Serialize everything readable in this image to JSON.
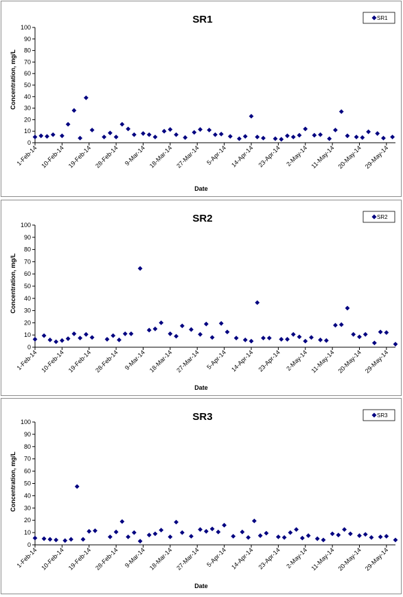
{
  "chart_data": [
    {
      "type": "scatter",
      "title": "SR1",
      "xlabel": "Date",
      "ylabel": "Concentration, mg/L",
      "ylim": [
        0,
        100
      ],
      "yticks": [
        0,
        10,
        20,
        30,
        40,
        50,
        60,
        70,
        80,
        90,
        100
      ],
      "xlim": [
        "2014-02-01",
        "2014-06-01"
      ],
      "xticks": [
        "1-Feb-14",
        "10-Feb-14",
        "19-Feb-14",
        "28-Feb-14",
        "9-Mar-14",
        "18-Mar-14",
        "27-Mar-14",
        "5-Apr-14",
        "14-Apr-14",
        "23-Apr-14",
        "2-May-14",
        "11-May-14",
        "20-May-14",
        "29-May-14"
      ],
      "grid": false,
      "legend": "top-right",
      "marker_color": "#000080",
      "series": [
        {
          "name": "SR1",
          "points": [
            [
              "2014-02-01",
              5
            ],
            [
              "2014-02-03",
              6
            ],
            [
              "2014-02-05",
              5.5
            ],
            [
              "2014-02-07",
              7
            ],
            [
              "2014-02-10",
              6
            ],
            [
              "2014-02-12",
              16
            ],
            [
              "2014-02-14",
              28
            ],
            [
              "2014-02-16",
              4
            ],
            [
              "2014-02-18",
              39
            ],
            [
              "2014-02-20",
              11
            ],
            [
              "2014-02-24",
              5
            ],
            [
              "2014-02-26",
              8.5
            ],
            [
              "2014-02-28",
              5
            ],
            [
              "2014-03-02",
              16
            ],
            [
              "2014-03-04",
              12
            ],
            [
              "2014-03-06",
              7
            ],
            [
              "2014-03-09",
              8
            ],
            [
              "2014-03-11",
              7
            ],
            [
              "2014-03-13",
              5
            ],
            [
              "2014-03-16",
              10
            ],
            [
              "2014-03-18",
              11.5
            ],
            [
              "2014-03-20",
              7
            ],
            [
              "2014-03-23",
              4.5
            ],
            [
              "2014-03-26",
              9
            ],
            [
              "2014-03-28",
              11.5
            ],
            [
              "2014-03-31",
              11
            ],
            [
              "2014-04-02",
              7
            ],
            [
              "2014-04-04",
              7.5
            ],
            [
              "2014-04-07",
              5.5
            ],
            [
              "2014-04-10",
              3.5
            ],
            [
              "2014-04-12",
              5.5
            ],
            [
              "2014-04-14",
              23
            ],
            [
              "2014-04-16",
              5
            ],
            [
              "2014-04-18",
              4
            ],
            [
              "2014-04-22",
              3.5
            ],
            [
              "2014-04-24",
              3
            ],
            [
              "2014-04-26",
              6
            ],
            [
              "2014-04-28",
              5
            ],
            [
              "2014-04-30",
              6.5
            ],
            [
              "2014-05-02",
              12
            ],
            [
              "2014-05-05",
              6.5
            ],
            [
              "2014-05-07",
              7
            ],
            [
              "2014-05-10",
              3.5
            ],
            [
              "2014-05-12",
              11
            ],
            [
              "2014-05-14",
              27
            ],
            [
              "2014-05-16",
              6
            ],
            [
              "2014-05-19",
              5
            ],
            [
              "2014-05-21",
              4.5
            ],
            [
              "2014-05-23",
              9.5
            ],
            [
              "2014-05-26",
              8
            ],
            [
              "2014-05-28",
              4
            ],
            [
              "2014-05-31",
              5
            ]
          ]
        }
      ]
    },
    {
      "type": "scatter",
      "title": "SR2",
      "xlabel": "Date",
      "ylabel": "Concentration, mg/L",
      "ylim": [
        0,
        100
      ],
      "yticks": [
        0,
        10,
        20,
        30,
        40,
        50,
        60,
        70,
        80,
        90,
        100
      ],
      "xlim": [
        "2014-02-01",
        "2014-06-01"
      ],
      "xticks": [
        "1-Feb-14",
        "10-Feb-14",
        "19-Feb-14",
        "28-Feb-14",
        "9-Mar-14",
        "18-Mar-14",
        "27-Mar-14",
        "5-Apr-14",
        "14-Apr-14",
        "23-Apr-14",
        "2-May-14",
        "11-May-14",
        "20-May-14",
        "29-May-14"
      ],
      "grid": false,
      "legend": "top-right",
      "marker_color": "#000080",
      "series": [
        {
          "name": "SR2",
          "points": [
            [
              "2014-02-01",
              6.5
            ],
            [
              "2014-02-04",
              9.5
            ],
            [
              "2014-02-06",
              6
            ],
            [
              "2014-02-08",
              4.5
            ],
            [
              "2014-02-10",
              5.5
            ],
            [
              "2014-02-12",
              7
            ],
            [
              "2014-02-14",
              11
            ],
            [
              "2014-02-16",
              7.5
            ],
            [
              "2014-02-18",
              10.5
            ],
            [
              "2014-02-20",
              8
            ],
            [
              "2014-02-25",
              6.5
            ],
            [
              "2014-02-27",
              9.5
            ],
            [
              "2014-03-01",
              6
            ],
            [
              "2014-03-03",
              11
            ],
            [
              "2014-03-05",
              11
            ],
            [
              "2014-03-08",
              64.5
            ],
            [
              "2014-03-11",
              14
            ],
            [
              "2014-03-13",
              15
            ],
            [
              "2014-03-15",
              20
            ],
            [
              "2014-03-18",
              11
            ],
            [
              "2014-03-20",
              9
            ],
            [
              "2014-03-22",
              17.5
            ],
            [
              "2014-03-25",
              14.5
            ],
            [
              "2014-03-28",
              10.5
            ],
            [
              "2014-03-30",
              19
            ],
            [
              "2014-04-01",
              8
            ],
            [
              "2014-04-04",
              19.5
            ],
            [
              "2014-04-06",
              12.5
            ],
            [
              "2014-04-09",
              7.5
            ],
            [
              "2014-04-12",
              6
            ],
            [
              "2014-04-14",
              5
            ],
            [
              "2014-04-16",
              36.5
            ],
            [
              "2014-04-18",
              7.5
            ],
            [
              "2014-04-20",
              7.5
            ],
            [
              "2014-04-24",
              6.5
            ],
            [
              "2014-04-26",
              6.5
            ],
            [
              "2014-04-28",
              10.5
            ],
            [
              "2014-04-30",
              8.5
            ],
            [
              "2014-05-02",
              5
            ],
            [
              "2014-05-04",
              8
            ],
            [
              "2014-05-07",
              6
            ],
            [
              "2014-05-09",
              5.5
            ],
            [
              "2014-05-12",
              18
            ],
            [
              "2014-05-14",
              18.5
            ],
            [
              "2014-05-16",
              32
            ],
            [
              "2014-05-18",
              10.5
            ],
            [
              "2014-05-20",
              8.5
            ],
            [
              "2014-05-22",
              10.5
            ],
            [
              "2014-05-25",
              3.5
            ],
            [
              "2014-05-27",
              12.5
            ],
            [
              "2014-05-29",
              12
            ],
            [
              "2014-06-01",
              2.5
            ]
          ]
        }
      ]
    },
    {
      "type": "scatter",
      "title": "SR3",
      "xlabel": "Date",
      "ylabel": "Concentration, mg/L",
      "ylim": [
        0,
        100
      ],
      "yticks": [
        0,
        10,
        20,
        30,
        40,
        50,
        60,
        70,
        80,
        90,
        100
      ],
      "xlim": [
        "2014-02-01",
        "2014-06-01"
      ],
      "xticks": [
        "1-Feb-14",
        "10-Feb-14",
        "19-Feb-14",
        "28-Feb-14",
        "9-Mar-14",
        "18-Mar-14",
        "27-Mar-14",
        "5-Apr-14",
        "14-Apr-14",
        "23-Apr-14",
        "2-May-14",
        "11-May-14",
        "20-May-14",
        "29-May-14"
      ],
      "grid": false,
      "legend": "top-right",
      "marker_color": "#000080",
      "series": [
        {
          "name": "SR3",
          "points": [
            [
              "2014-02-01",
              5.5
            ],
            [
              "2014-02-04",
              5
            ],
            [
              "2014-02-06",
              4.5
            ],
            [
              "2014-02-08",
              4
            ],
            [
              "2014-02-11",
              3.5
            ],
            [
              "2014-02-13",
              4.5
            ],
            [
              "2014-02-15",
              47.5
            ],
            [
              "2014-02-17",
              4.5
            ],
            [
              "2014-02-19",
              11
            ],
            [
              "2014-02-21",
              11.5
            ],
            [
              "2014-02-26",
              6.5
            ],
            [
              "2014-02-28",
              10.5
            ],
            [
              "2014-03-02",
              19
            ],
            [
              "2014-03-04",
              6.5
            ],
            [
              "2014-03-06",
              10
            ],
            [
              "2014-03-08",
              3
            ],
            [
              "2014-03-11",
              8
            ],
            [
              "2014-03-13",
              9
            ],
            [
              "2014-03-15",
              12
            ],
            [
              "2014-03-18",
              6.5
            ],
            [
              "2014-03-20",
              18.5
            ],
            [
              "2014-03-22",
              10
            ],
            [
              "2014-03-25",
              7
            ],
            [
              "2014-03-28",
              12.5
            ],
            [
              "2014-03-30",
              11
            ],
            [
              "2014-04-01",
              13
            ],
            [
              "2014-04-03",
              10.5
            ],
            [
              "2014-04-05",
              16
            ],
            [
              "2014-04-08",
              7
            ],
            [
              "2014-04-11",
              10.5
            ],
            [
              "2014-04-13",
              6
            ],
            [
              "2014-04-15",
              19.5
            ],
            [
              "2014-04-17",
              7.5
            ],
            [
              "2014-04-19",
              9.5
            ],
            [
              "2014-04-23",
              6.5
            ],
            [
              "2014-04-25",
              6
            ],
            [
              "2014-04-27",
              10
            ],
            [
              "2014-04-29",
              12.5
            ],
            [
              "2014-05-01",
              5.5
            ],
            [
              "2014-05-03",
              7.5
            ],
            [
              "2014-05-06",
              5
            ],
            [
              "2014-05-08",
              4
            ],
            [
              "2014-05-11",
              9
            ],
            [
              "2014-05-13",
              8
            ],
            [
              "2014-05-15",
              12.5
            ],
            [
              "2014-05-17",
              9
            ],
            [
              "2014-05-20",
              7.5
            ],
            [
              "2014-05-22",
              8.5
            ],
            [
              "2014-05-24",
              6
            ],
            [
              "2014-05-27",
              6.5
            ],
            [
              "2014-05-29",
              7
            ],
            [
              "2014-06-01",
              4
            ]
          ]
        }
      ]
    }
  ]
}
